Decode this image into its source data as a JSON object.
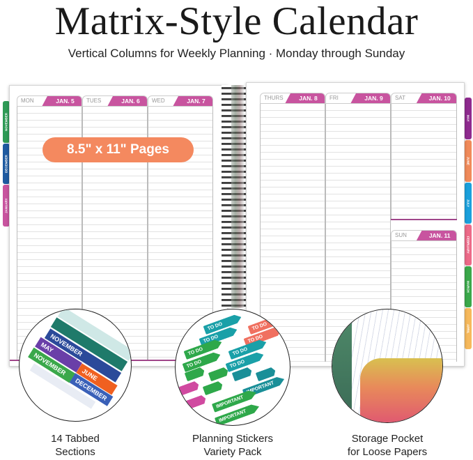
{
  "header": {
    "title": "Matrix-Style Calendar",
    "subtitle": "Vertical Columns for Weekly Planning  ·  Monday through Sunday"
  },
  "left_page": {
    "days": [
      {
        "day": "MON",
        "date": "JAN. 5"
      },
      {
        "day": "TUES",
        "date": "JAN. 6"
      },
      {
        "day": "WED",
        "date": "JAN. 7"
      }
    ],
    "tabs": [
      {
        "label": "NOVEMBER",
        "color": "#2e9a56"
      },
      {
        "label": "DECEMBER",
        "color": "#1e5aa0"
      },
      {
        "label": "JANUARY",
        "color": "#c8549f"
      }
    ],
    "badge": "8.5\" x 11\" Pages"
  },
  "right_page": {
    "days": [
      {
        "day": "THURS",
        "date": "JAN. 8"
      },
      {
        "day": "FRI",
        "date": "JAN. 9"
      },
      {
        "day": "SAT",
        "date": "JAN. 10"
      },
      {
        "day": "SUN",
        "date": "JAN. 11"
      }
    ],
    "tabs": [
      {
        "label": "MAY",
        "color": "#8e2a8e"
      },
      {
        "label": "JUNE",
        "color": "#f08a5a"
      },
      {
        "label": "JULY",
        "color": "#1aa0dc"
      },
      {
        "label": "FEBRUARY",
        "color": "#ec6a88"
      },
      {
        "label": "MARCH",
        "color": "#3aa84a"
      },
      {
        "label": "APRIL",
        "color": "#f6b95c"
      }
    ]
  },
  "features": [
    {
      "caption_line1": "14 Tabbed",
      "caption_line2": "Sections",
      "tab_labels": [
        "NOVEMBER",
        "MAY",
        "NOVEMBER",
        "JUNE",
        "DECEMBER",
        "DECEMBER"
      ]
    },
    {
      "caption_line1": "Planning Stickers",
      "caption_line2": "Variety Pack",
      "sticker_labels": [
        "TO DO",
        "IMPORTANT"
      ]
    },
    {
      "caption_line1": "Storage Pocket",
      "caption_line2": "for Loose Papers"
    }
  ],
  "colors": {
    "accent": "#c8549f",
    "badge": "#f4895f"
  }
}
